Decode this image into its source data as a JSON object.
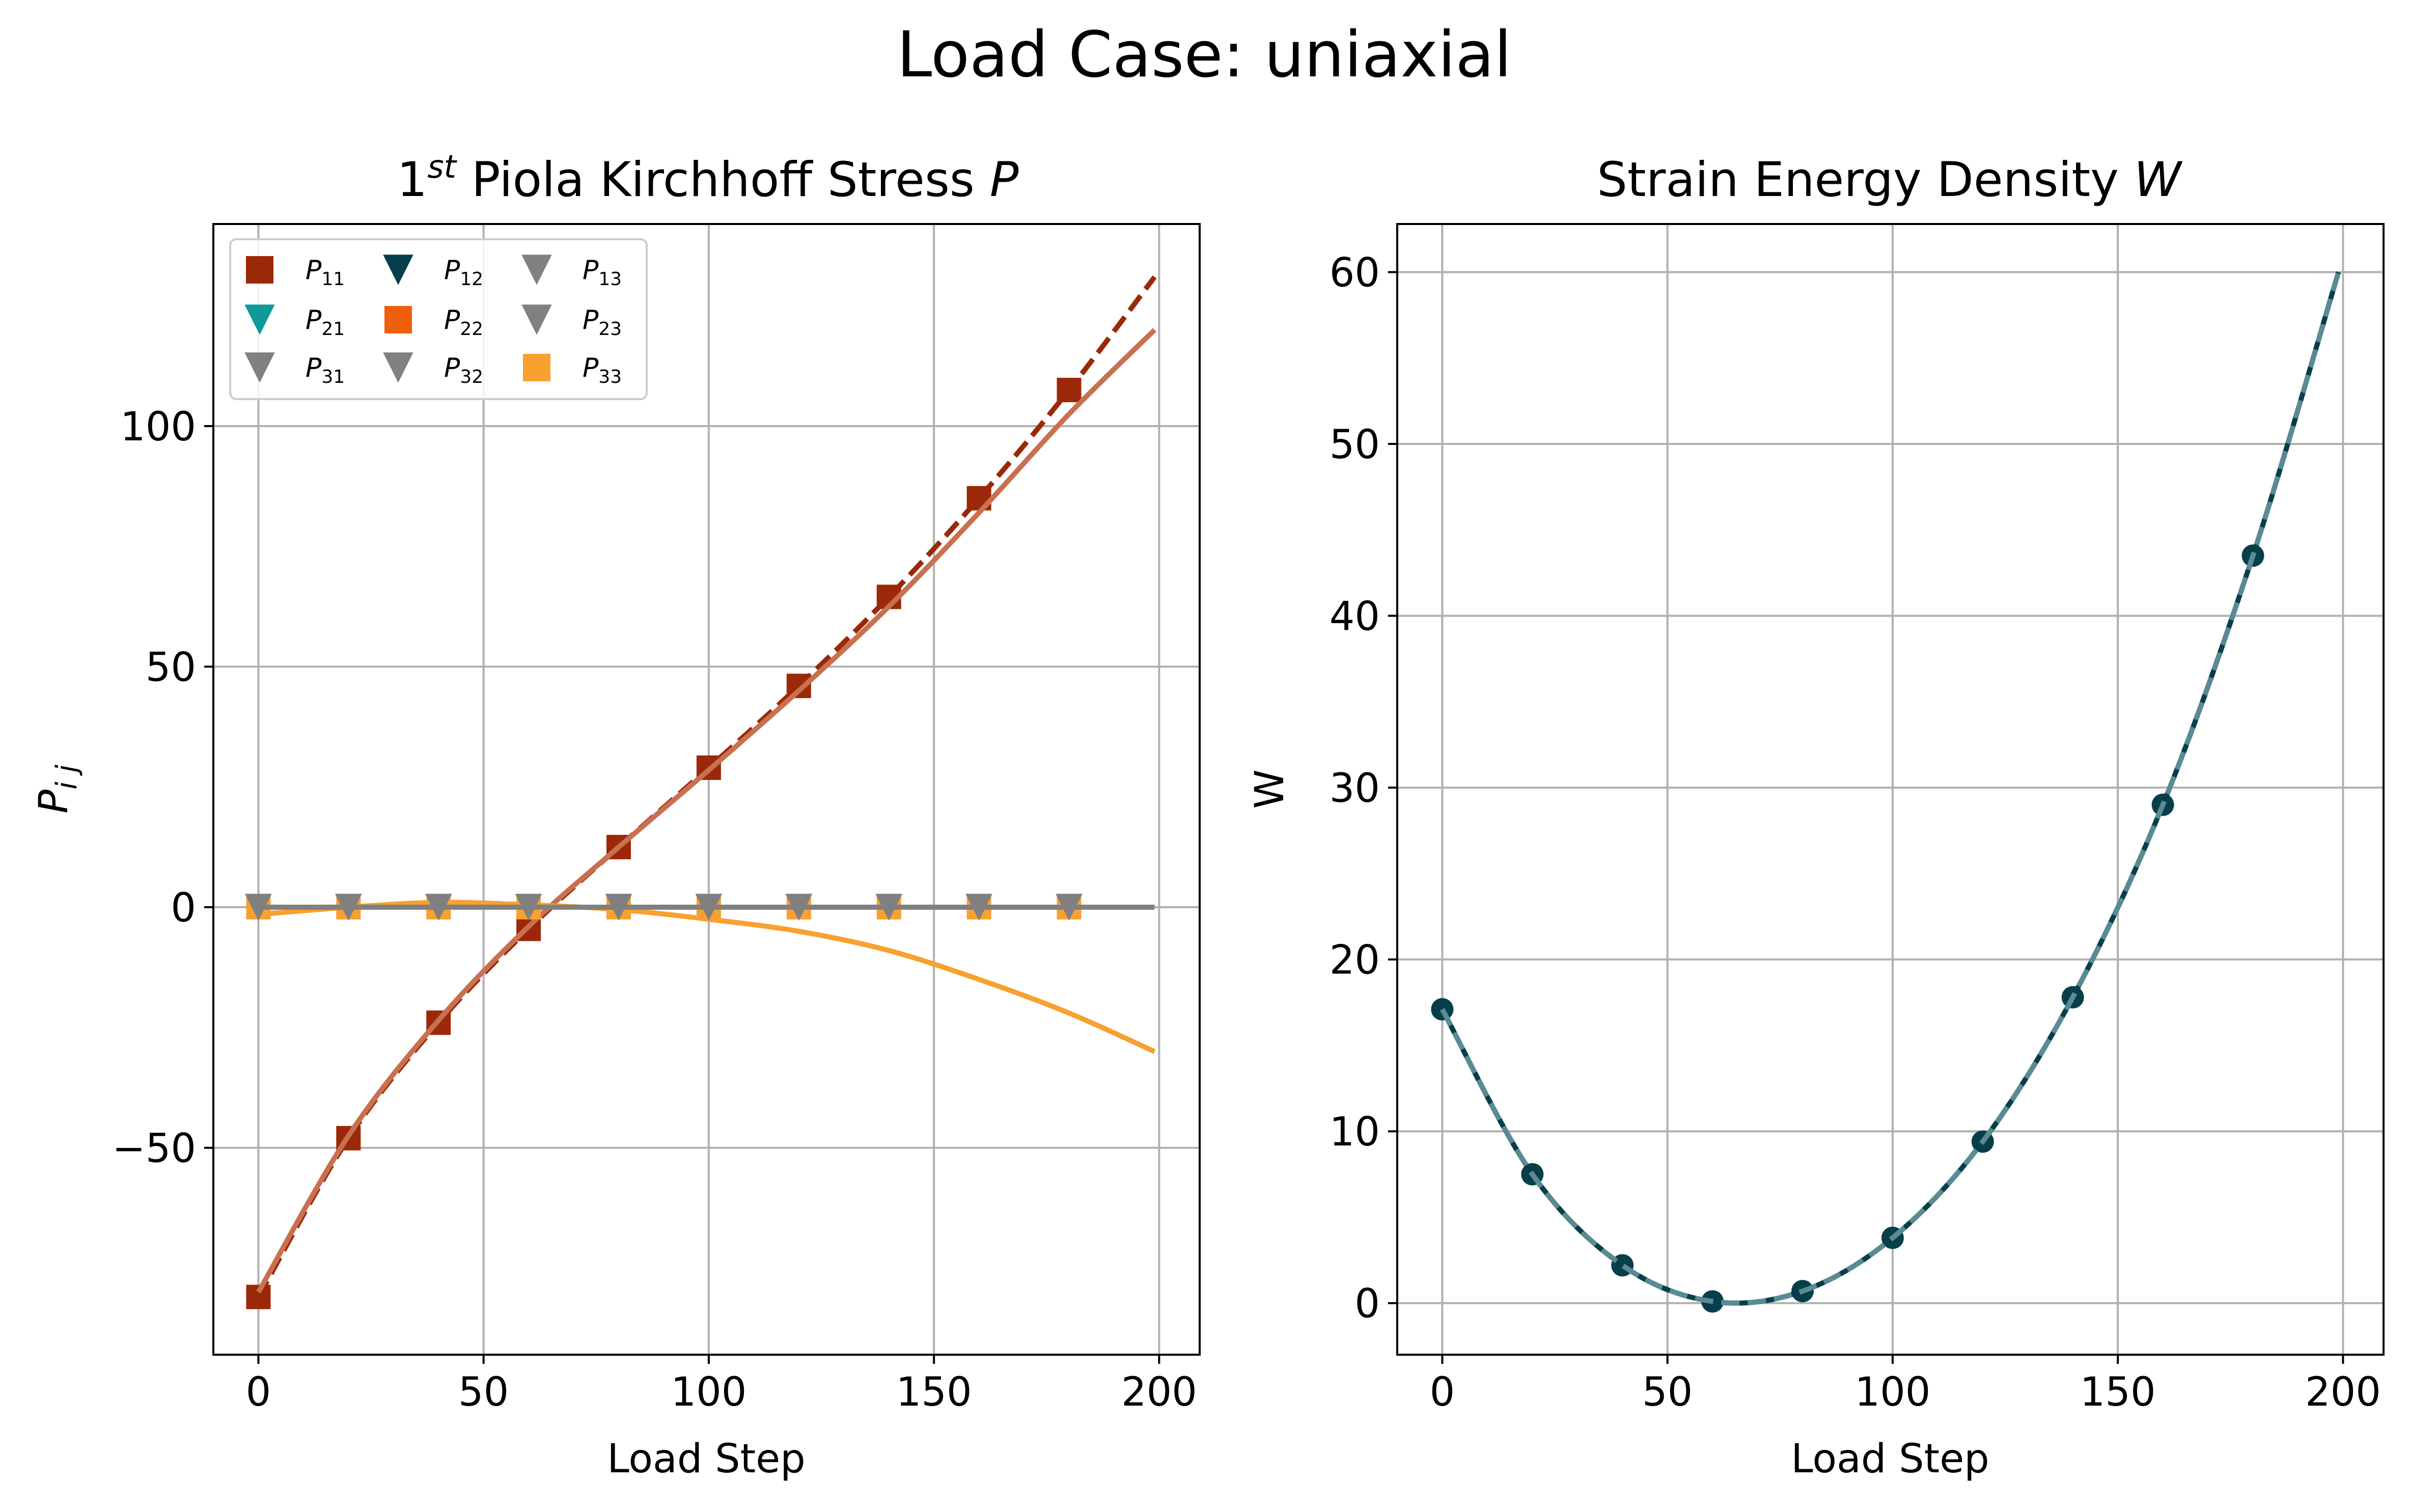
{
  "figure": {
    "suptitle": "Load Case: uniaxial"
  },
  "chart_data": [
    {
      "type": "line",
      "title_base": "1",
      "title_sup": "st",
      "title_main": " Piola Kirchhoff Stress ",
      "title_var": "P",
      "xlabel": "Load Step",
      "ylabel_base": "P",
      "ylabel_sub": "i j",
      "xlim": [
        -10,
        209
      ],
      "ylim": [
        -93,
        142
      ],
      "xticks": [
        0,
        50,
        100,
        150,
        200
      ],
      "yticks": [
        -50,
        0,
        50,
        100
      ],
      "ytick_labels": [
        "−50",
        "0",
        "50",
        "100"
      ],
      "grid": true,
      "legend": {
        "location": "top-left",
        "columns": 3,
        "entries": [
          {
            "base": "P",
            "sub": "11",
            "marker": "square",
            "color": "#9b2808"
          },
          {
            "base": "P",
            "sub": "12",
            "marker": "triangle-down",
            "color": "#063f4a"
          },
          {
            "base": "P",
            "sub": "13",
            "marker": "triangle-down",
            "color": "#808080"
          },
          {
            "base": "P",
            "sub": "21",
            "marker": "triangle-down",
            "color": "#0f9a9a"
          },
          {
            "base": "P",
            "sub": "22",
            "marker": "square",
            "color": "#ee5e0b"
          },
          {
            "base": "P",
            "sub": "23",
            "marker": "triangle-down",
            "color": "#808080"
          },
          {
            "base": "P",
            "sub": "31",
            "marker": "triangle-down",
            "color": "#808080"
          },
          {
            "base": "P",
            "sub": "32",
            "marker": "triangle-down",
            "color": "#808080"
          },
          {
            "base": "P",
            "sub": "33",
            "marker": "square",
            "color": "#f8a030"
          }
        ]
      },
      "x": [
        0,
        20,
        40,
        60,
        80,
        100,
        120,
        140,
        160,
        180,
        199
      ],
      "series": [
        {
          "name": "P11",
          "style": "dashed",
          "color": "#9b2808",
          "marker": "square",
          "y": [
            -81,
            -48,
            -24,
            -4.5,
            12.5,
            29,
            46,
            64.5,
            85,
            107.5,
            131
          ]
        },
        {
          "name": "P11",
          "style": "solid",
          "color": "#c87050",
          "marker": "none",
          "y": [
            -80,
            -47.5,
            -23.5,
            -4,
            12.5,
            28.5,
            45,
            62.5,
            82,
            102.5,
            120
          ]
        },
        {
          "name": "P33",
          "style": "solid",
          "color": "#f8a030",
          "marker": "none",
          "y": [
            -1.5,
            0,
            1,
            0.5,
            -0.5,
            -2.5,
            -5,
            -9,
            -15,
            -22,
            -30
          ]
        },
        {
          "name": "P33",
          "style": "solid",
          "color": "#f8a030",
          "marker": "square",
          "y": [
            0,
            0,
            0,
            0,
            0,
            0,
            0,
            0,
            0,
            0,
            null
          ]
        },
        {
          "name": "P13",
          "style": "solid",
          "color": "#808080",
          "marker": "triangle-down",
          "y": [
            0,
            0,
            0,
            0,
            0,
            0,
            0,
            0,
            0,
            0,
            0
          ]
        }
      ]
    },
    {
      "type": "line",
      "title_main": "Strain Energy Density ",
      "title_var": "W",
      "xlabel": "Load Step",
      "ylabel": "W",
      "xlim": [
        -10,
        209
      ],
      "ylim": [
        -3,
        62.8
      ],
      "xticks": [
        0,
        50,
        100,
        150,
        200
      ],
      "yticks": [
        0,
        10,
        20,
        30,
        40,
        50,
        60
      ],
      "grid": true,
      "x": [
        0,
        20,
        40,
        60,
        80,
        100,
        120,
        140,
        160,
        180,
        199
      ],
      "series": [
        {
          "name": "W",
          "style": "solid",
          "color": "#063f4a",
          "marker": "circle",
          "y": [
            17.1,
            7.5,
            2.2,
            0.1,
            0.7,
            3.8,
            9.4,
            17.8,
            29,
            43.5,
            60
          ]
        },
        {
          "name": "W",
          "style": "dashed",
          "color": "#5a8a93",
          "marker": "none",
          "y": [
            17.1,
            7.5,
            2.2,
            0.1,
            0.7,
            3.8,
            9.4,
            17.8,
            29,
            43.5,
            60
          ]
        }
      ]
    }
  ]
}
